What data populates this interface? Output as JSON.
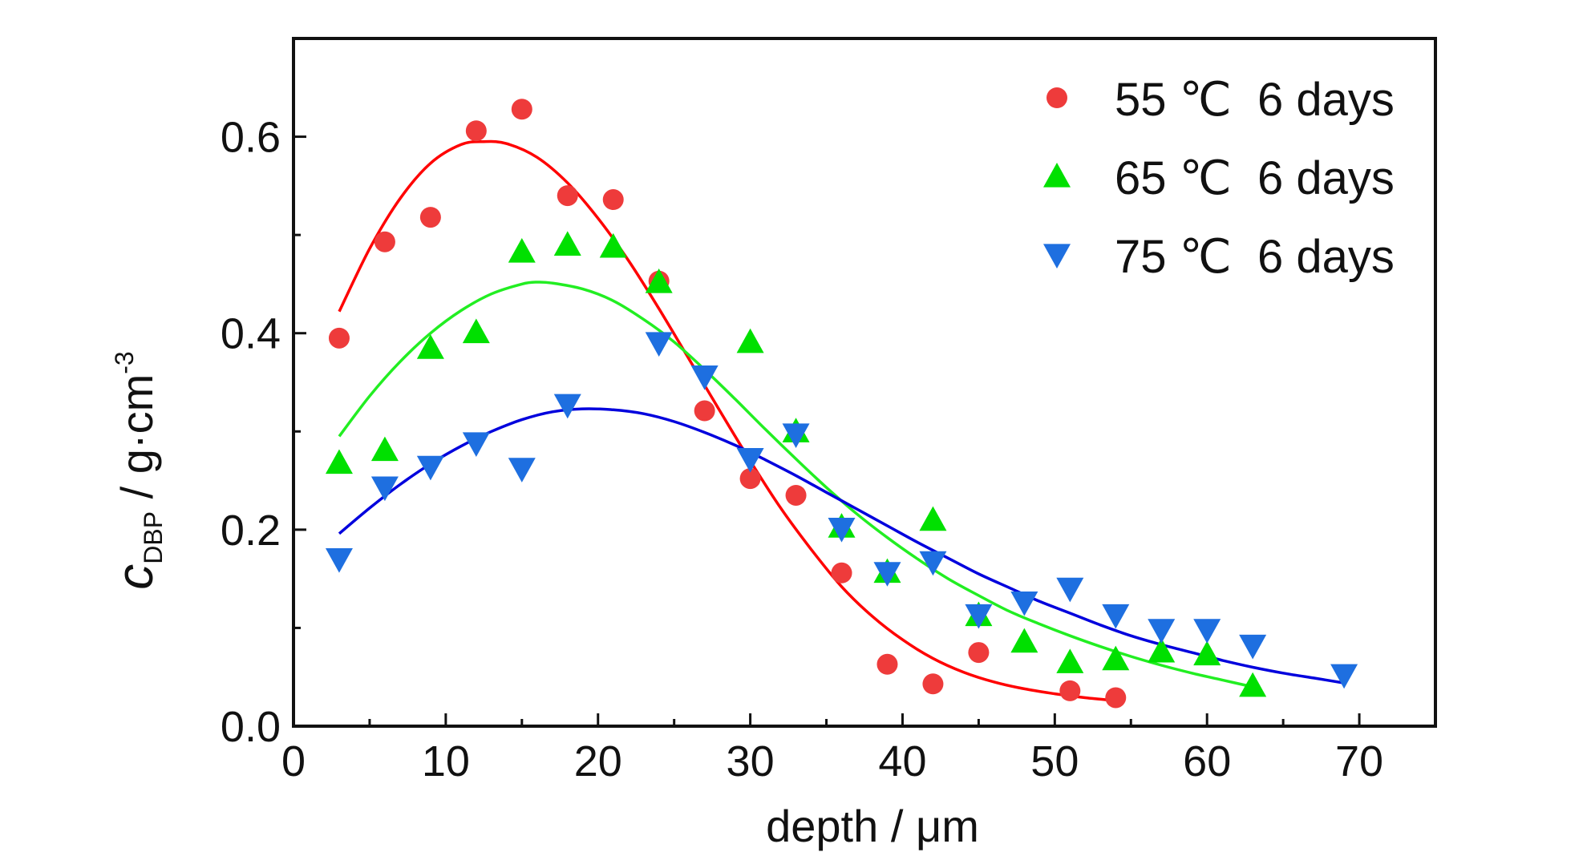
{
  "chart_data": {
    "type": "scatter",
    "xlabel": "depth / μm",
    "ylabel_main": "c",
    "ylabel_sub": "DBP",
    "ylabel_unit": " / g·cm",
    "ylabel_sup": "-3",
    "xlim": [
      0,
      75
    ],
    "ylim": [
      0,
      0.7
    ],
    "xticks": [
      0,
      10,
      20,
      30,
      40,
      50,
      60,
      70
    ],
    "xtick_labels": [
      "0",
      "10",
      "20",
      "30",
      "40",
      "50",
      "60",
      "70"
    ],
    "yticks": [
      0.0,
      0.2,
      0.4,
      0.6
    ],
    "ytick_labels": [
      "0.0",
      "0.2",
      "0.4",
      "0.6"
    ],
    "grid": false,
    "legend_position": "top-right",
    "series": [
      {
        "name": "55 ℃  6 days",
        "marker": "circle",
        "color": "#ee3b3b",
        "line_color": "#ff0000",
        "x": [
          3,
          6,
          9,
          12,
          15,
          18,
          21,
          24,
          27,
          30,
          33,
          36,
          39,
          42,
          45,
          51,
          54
        ],
        "y": [
          0.395,
          0.493,
          0.518,
          0.606,
          0.628,
          0.54,
          0.536,
          0.453,
          0.321,
          0.252,
          0.235,
          0.156,
          0.063,
          0.043,
          0.075,
          0.036,
          0.029
        ],
        "fit": {
          "x": [
            3,
            5,
            7,
            9,
            11,
            12.5,
            14,
            16,
            18,
            20,
            22,
            24,
            26,
            28,
            30,
            32,
            34,
            36,
            38,
            40,
            42,
            44,
            46,
            48,
            50,
            52,
            54
          ],
          "y": [
            0.422,
            0.486,
            0.537,
            0.573,
            0.592,
            0.595,
            0.593,
            0.579,
            0.553,
            0.517,
            0.474,
            0.425,
            0.373,
            0.321,
            0.27,
            0.222,
            0.18,
            0.142,
            0.112,
            0.088,
            0.069,
            0.055,
            0.045,
            0.038,
            0.033,
            0.029,
            0.026
          ]
        }
      },
      {
        "name": "65 ℃  6 days",
        "marker": "triangle-up",
        "color": "#00e000",
        "line_color": "#22ee22",
        "x": [
          3,
          6,
          9,
          12,
          15,
          18,
          21,
          24,
          30,
          33,
          36,
          39,
          42,
          45,
          48,
          51,
          54,
          57,
          60,
          63
        ],
        "y": [
          0.268,
          0.281,
          0.385,
          0.401,
          0.483,
          0.49,
          0.488,
          0.452,
          0.391,
          0.3,
          0.203,
          0.157,
          0.21,
          0.113,
          0.086,
          0.065,
          0.068,
          0.076,
          0.073,
          0.041
        ],
        "fit": {
          "x": [
            3,
            5,
            7,
            9,
            11,
            13,
            15,
            16,
            17,
            19,
            21,
            23,
            25,
            27,
            29,
            31,
            33,
            35,
            37,
            39,
            41,
            43,
            45,
            47,
            49,
            51,
            53,
            55,
            57,
            59,
            61,
            63
          ],
          "y": [
            0.295,
            0.336,
            0.371,
            0.4,
            0.423,
            0.44,
            0.45,
            0.452,
            0.451,
            0.445,
            0.433,
            0.414,
            0.391,
            0.363,
            0.333,
            0.302,
            0.272,
            0.243,
            0.216,
            0.192,
            0.17,
            0.15,
            0.133,
            0.117,
            0.104,
            0.092,
            0.081,
            0.071,
            0.062,
            0.054,
            0.047,
            0.04
          ]
        }
      },
      {
        "name": "75 ℃  6 days",
        "marker": "triangle-down",
        "color": "#1e6fe0",
        "line_color": "#0000dd",
        "x": [
          3,
          6,
          9,
          12,
          15,
          18,
          24,
          27,
          30,
          33,
          36,
          39,
          42,
          45,
          48,
          51,
          54,
          57,
          60,
          63,
          69
        ],
        "y": [
          0.17,
          0.243,
          0.264,
          0.288,
          0.262,
          0.327,
          0.39,
          0.356,
          0.272,
          0.297,
          0.201,
          0.156,
          0.167,
          0.113,
          0.126,
          0.14,
          0.113,
          0.098,
          0.098,
          0.082,
          0.052
        ],
        "fit": {
          "x": [
            3,
            5,
            7,
            9,
            11,
            13,
            15,
            17,
            19,
            21,
            23,
            25,
            27,
            29,
            31,
            33,
            35,
            37,
            39,
            41,
            43,
            45,
            47,
            49,
            51,
            53,
            55,
            57,
            59,
            61,
            63,
            65,
            67,
            69
          ],
          "y": [
            0.196,
            0.222,
            0.246,
            0.267,
            0.285,
            0.3,
            0.312,
            0.32,
            0.323,
            0.322,
            0.318,
            0.31,
            0.299,
            0.286,
            0.271,
            0.255,
            0.238,
            0.221,
            0.204,
            0.187,
            0.171,
            0.155,
            0.141,
            0.127,
            0.115,
            0.103,
            0.092,
            0.083,
            0.075,
            0.067,
            0.06,
            0.054,
            0.049,
            0.044
          ]
        }
      }
    ]
  }
}
